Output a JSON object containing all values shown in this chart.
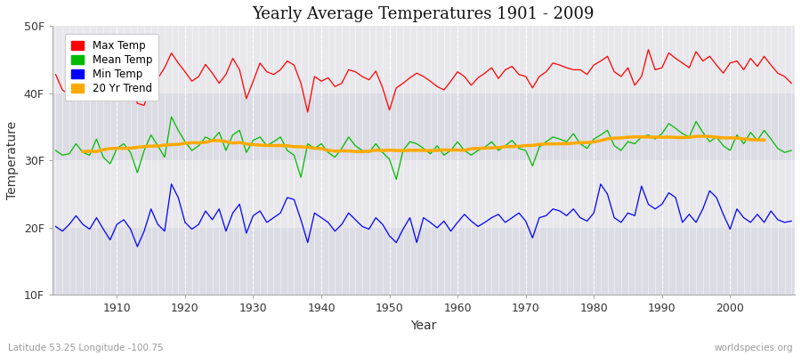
{
  "title": "Yearly Average Temperatures 1901 - 2009",
  "xlabel": "Year",
  "ylabel": "Temperature",
  "lat_lon_label": "Latitude 53.25 Longitude -100.75",
  "watermark": "worldspecies.org",
  "ylim": [
    10,
    50
  ],
  "yticks": [
    10,
    20,
    30,
    40,
    50
  ],
  "ytick_labels": [
    "10F",
    "20F",
    "30F",
    "40F",
    "50F"
  ],
  "start_year": 1901,
  "end_year": 2009,
  "fig_bg_color": "#ffffff",
  "plot_bg_color": "#e8e8ec",
  "grid_color": "#ffffff",
  "colors": {
    "max": "#ff0000",
    "mean": "#00bb00",
    "min": "#0000ff",
    "trend": "#ffaa00"
  },
  "legend_labels": [
    "Max Temp",
    "Mean Temp",
    "Min Temp",
    "20 Yr Trend"
  ],
  "max_temps": [
    42.8,
    40.5,
    39.8,
    41.2,
    42.5,
    41.8,
    43.0,
    42.2,
    40.0,
    39.2,
    42.3,
    41.9,
    38.5,
    38.2,
    41.5,
    42.2,
    43.8,
    46.0,
    44.5,
    43.2,
    41.8,
    42.5,
    44.3,
    43.0,
    41.5,
    42.8,
    45.2,
    43.5,
    39.2,
    41.8,
    44.5,
    43.2,
    42.8,
    43.5,
    44.8,
    44.2,
    41.5,
    37.2,
    42.5,
    41.8,
    42.3,
    41.0,
    41.5,
    43.5,
    43.2,
    42.5,
    42.0,
    43.3,
    40.8,
    37.5,
    40.8,
    41.5,
    42.3,
    43.0,
    42.5,
    41.8,
    41.0,
    40.5,
    41.8,
    43.2,
    42.5,
    41.2,
    42.3,
    43.0,
    43.8,
    42.2,
    43.5,
    44.0,
    42.8,
    42.5,
    40.8,
    42.5,
    43.2,
    44.5,
    44.2,
    43.8,
    43.5,
    43.5,
    42.8,
    44.2,
    44.8,
    45.5,
    43.2,
    42.5,
    43.8,
    41.2,
    42.5,
    46.5,
    43.5,
    43.8,
    46.0,
    45.2,
    44.5,
    43.8,
    46.2,
    44.8,
    45.5,
    44.2,
    43.0,
    44.5,
    44.8,
    43.5,
    45.2,
    44.0,
    45.5,
    44.2,
    43.0,
    42.5,
    41.5
  ],
  "mean_temps": [
    31.5,
    30.8,
    31.0,
    32.5,
    31.2,
    30.8,
    33.2,
    30.5,
    29.5,
    31.8,
    32.5,
    31.2,
    28.2,
    31.5,
    33.8,
    32.2,
    30.5,
    36.5,
    34.5,
    32.8,
    31.5,
    32.2,
    33.5,
    33.0,
    34.2,
    31.5,
    33.8,
    34.5,
    31.2,
    33.0,
    33.5,
    32.2,
    32.8,
    33.5,
    31.5,
    30.8,
    27.5,
    32.5,
    31.8,
    32.5,
    31.2,
    30.5,
    31.8,
    33.5,
    32.2,
    31.5,
    31.2,
    32.5,
    31.2,
    30.2,
    27.2,
    31.5,
    32.8,
    32.5,
    31.8,
    31.0,
    32.2,
    30.8,
    31.5,
    32.8,
    31.5,
    30.8,
    31.5,
    32.0,
    32.8,
    31.5,
    32.2,
    33.0,
    31.8,
    31.5,
    29.2,
    32.0,
    32.8,
    33.5,
    33.2,
    32.8,
    34.0,
    32.5,
    31.8,
    33.2,
    33.8,
    34.5,
    32.2,
    31.5,
    32.8,
    32.5,
    33.5,
    33.8,
    33.2,
    34.0,
    35.5,
    34.8,
    34.0,
    33.5,
    35.8,
    34.2,
    32.8,
    33.5,
    32.2,
    31.5,
    33.8,
    32.5,
    34.2,
    33.0,
    34.5,
    33.2,
    31.8,
    31.2,
    31.5
  ],
  "min_temps": [
    20.2,
    19.5,
    20.5,
    21.8,
    20.5,
    19.8,
    21.5,
    19.8,
    18.2,
    20.5,
    21.2,
    19.8,
    17.2,
    19.5,
    22.8,
    20.5,
    19.5,
    26.5,
    24.5,
    20.8,
    19.8,
    20.5,
    22.5,
    21.2,
    22.8,
    19.5,
    22.2,
    23.5,
    19.2,
    21.8,
    22.5,
    20.8,
    21.5,
    22.2,
    24.5,
    24.2,
    21.2,
    17.8,
    22.2,
    21.5,
    20.8,
    19.5,
    20.5,
    22.2,
    21.2,
    20.2,
    19.8,
    21.5,
    20.5,
    18.8,
    17.8,
    19.8,
    21.5,
    17.8,
    21.5,
    20.8,
    20.0,
    21.0,
    19.5,
    20.8,
    22.0,
    21.0,
    20.2,
    20.8,
    21.5,
    22.0,
    20.8,
    21.5,
    22.2,
    21.0,
    18.5,
    21.5,
    21.8,
    22.8,
    22.5,
    21.8,
    22.8,
    21.5,
    21.0,
    22.2,
    26.5,
    25.0,
    21.5,
    20.8,
    22.2,
    21.8,
    26.2,
    23.5,
    22.8,
    23.5,
    25.2,
    24.5,
    20.8,
    22.0,
    20.8,
    22.8,
    25.5,
    24.5,
    22.0,
    19.8,
    22.8,
    21.5,
    20.8,
    22.0,
    20.8,
    22.5,
    21.2,
    20.8,
    21.0
  ]
}
